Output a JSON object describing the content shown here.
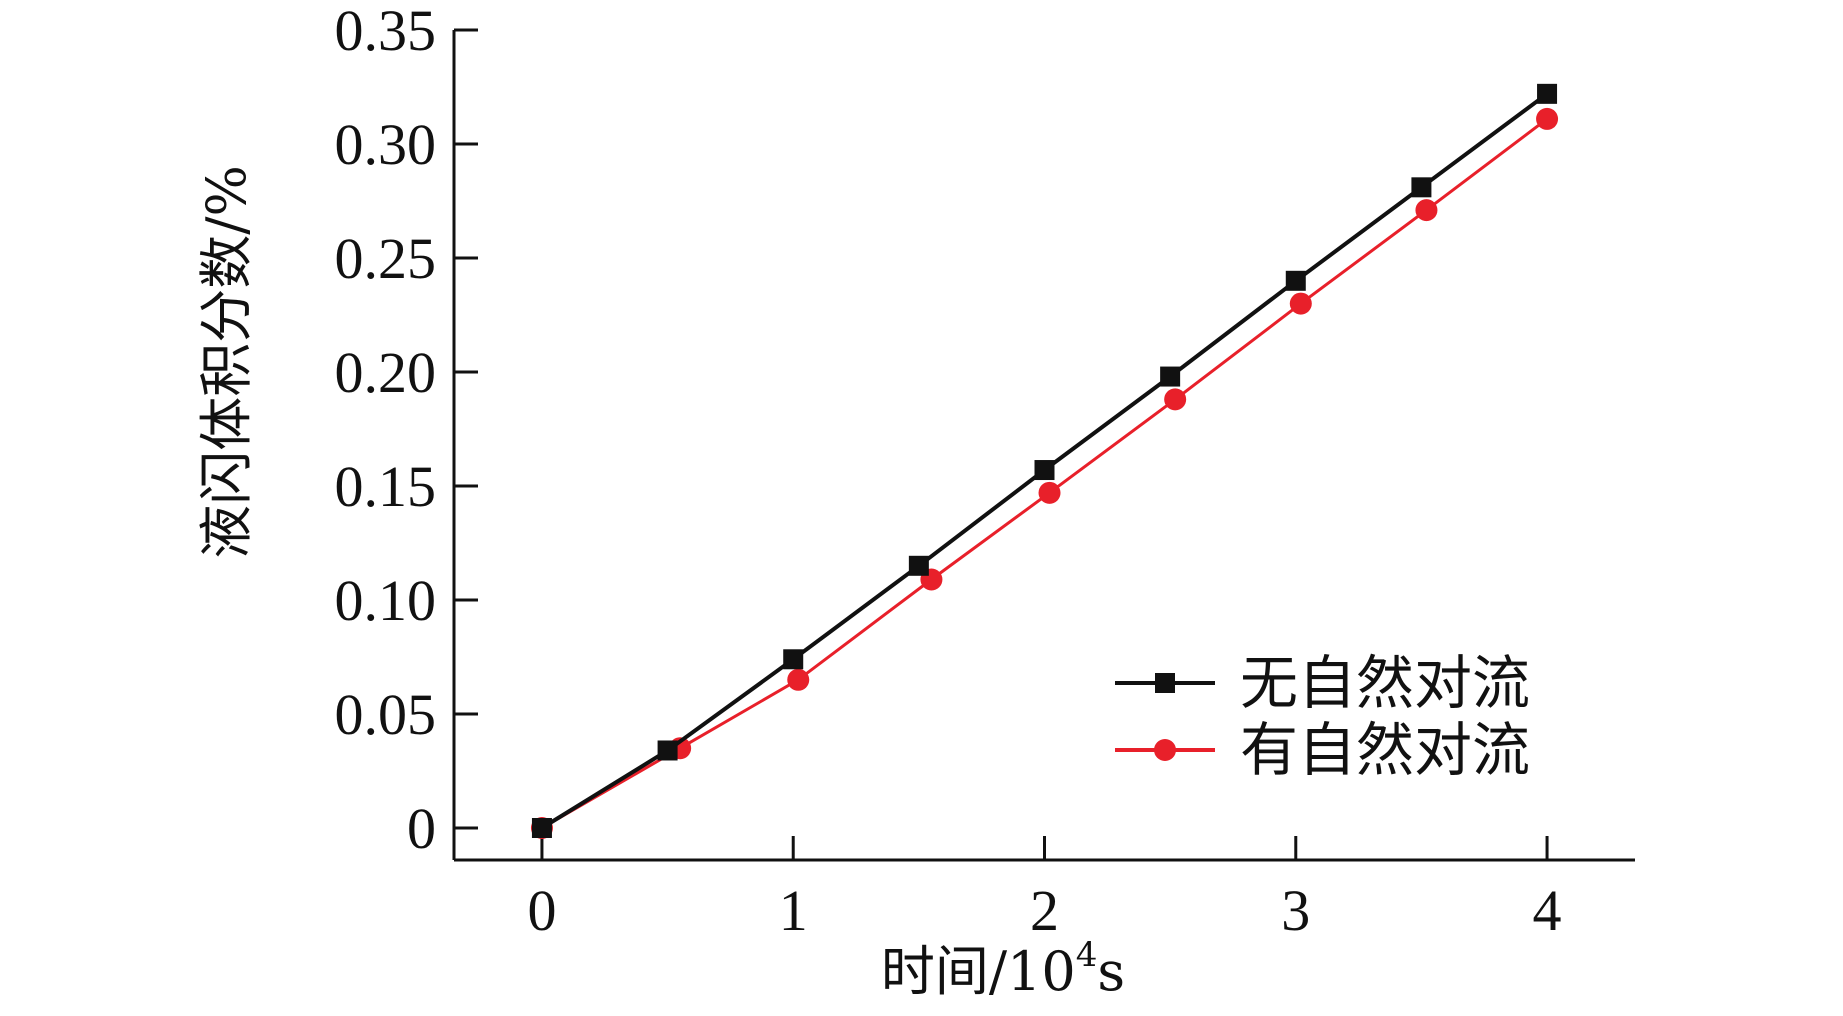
{
  "chart_data": {
    "type": "line",
    "xlabel": "时间/10",
    "xlabel_superscript": "4",
    "xlabel_suffix": "s",
    "ylabel": "液闪体积分数/%",
    "xlim": [
      -0.35,
      4.35
    ],
    "ylim": [
      0,
      0.35
    ],
    "x_ticks": [
      0,
      1,
      2,
      3,
      4
    ],
    "x_tick_labels": [
      "0",
      "1",
      "2",
      "3",
      "4"
    ],
    "y_ticks": [
      0,
      0.05,
      0.1,
      0.15,
      0.2,
      0.25,
      0.3,
      0.35
    ],
    "y_tick_labels": [
      "0",
      "0.05",
      "0.10",
      "0.15",
      "0.20",
      "0.25",
      "0.30",
      "0.35"
    ],
    "grid": false,
    "legend_position": "bottom-right",
    "series": [
      {
        "name": "无自然对流",
        "marker": "square",
        "color": "#111111",
        "x": [
          0,
          0.5,
          1,
          1.5,
          2,
          2.5,
          3,
          3.5,
          4
        ],
        "values": [
          0,
          0.034,
          0.074,
          0.115,
          0.157,
          0.198,
          0.24,
          0.281,
          0.322
        ]
      },
      {
        "name": "有自然对流",
        "marker": "circle",
        "color": "#e8202a",
        "x": [
          0,
          0.55,
          1.02,
          1.55,
          2.02,
          2.52,
          3.02,
          3.52,
          4
        ],
        "values": [
          0,
          0.035,
          0.065,
          0.109,
          0.147,
          0.188,
          0.23,
          0.271,
          0.311
        ]
      }
    ]
  }
}
